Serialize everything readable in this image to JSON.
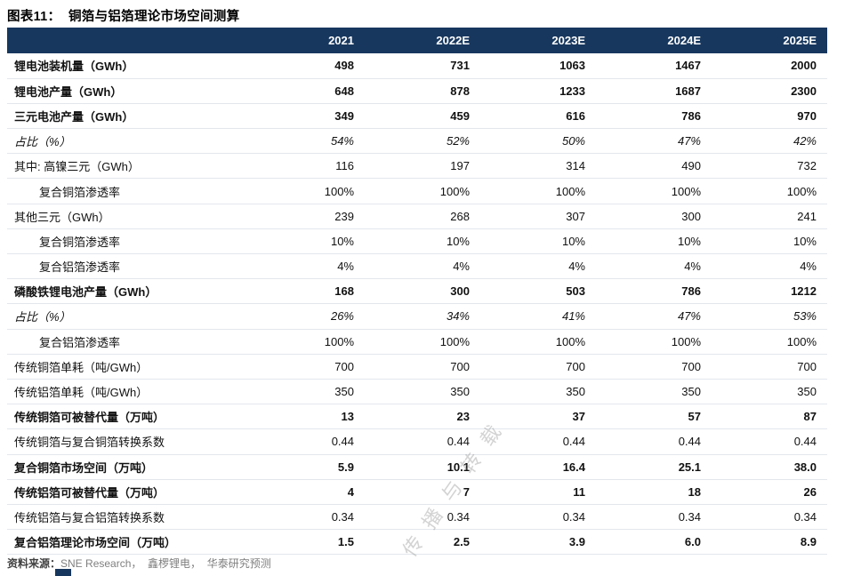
{
  "title": "图表11：  铜箔与铝箔理论市场空间测算",
  "colors": {
    "header_bg": "#17375E",
    "header_text": "#FFFFFF",
    "grid": "#E3E7ED",
    "navy": "#17375E",
    "muted": "#7F7F7F"
  },
  "chart_data": {
    "type": "table",
    "title": "图表11：铜箔与铝箔理论市场空间测算",
    "columns": [
      "2021",
      "2022E",
      "2023E",
      "2024E",
      "2025E"
    ],
    "rows": [
      {
        "label": "锂电池装机量（GWh）",
        "style": "bold",
        "indent": 0,
        "values": [
          "498",
          "731",
          "1063",
          "1467",
          "2000"
        ]
      },
      {
        "label": "锂电池产量（GWh）",
        "style": "bold",
        "indent": 0,
        "values": [
          "648",
          "878",
          "1233",
          "1687",
          "2300"
        ]
      },
      {
        "label": "三元电池产量（GWh）",
        "style": "bold",
        "indent": 0,
        "values": [
          "349",
          "459",
          "616",
          "786",
          "970"
        ]
      },
      {
        "label": "占比（%）",
        "style": "italic",
        "indent": 0,
        "values": [
          "54%",
          "52%",
          "50%",
          "47%",
          "42%"
        ]
      },
      {
        "label": "其中: 高镍三元（GWh）",
        "style": "normal",
        "indent": 0,
        "values": [
          "116",
          "197",
          "314",
          "490",
          "732"
        ]
      },
      {
        "label": "复合铜箔渗透率",
        "style": "normal",
        "indent": 1,
        "values": [
          "100%",
          "100%",
          "100%",
          "100%",
          "100%"
        ]
      },
      {
        "label": "其他三元（GWh）",
        "style": "normal",
        "indent": 0,
        "values": [
          "239",
          "268",
          "307",
          "300",
          "241"
        ]
      },
      {
        "label": "复合铜箔渗透率",
        "style": "normal",
        "indent": 1,
        "values": [
          "10%",
          "10%",
          "10%",
          "10%",
          "10%"
        ]
      },
      {
        "label": "复合铝箔渗透率",
        "style": "normal",
        "indent": 1,
        "values": [
          "4%",
          "4%",
          "4%",
          "4%",
          "4%"
        ]
      },
      {
        "label": "磷酸铁锂电池产量（GWh）",
        "style": "bold",
        "indent": 0,
        "values": [
          "168",
          "300",
          "503",
          "786",
          "1212"
        ]
      },
      {
        "label": "占比（%）",
        "style": "italic",
        "indent": 0,
        "values": [
          "26%",
          "34%",
          "41%",
          "47%",
          "53%"
        ]
      },
      {
        "label": "复合铝箔渗透率",
        "style": "normal",
        "indent": 1,
        "values": [
          "100%",
          "100%",
          "100%",
          "100%",
          "100%"
        ]
      },
      {
        "label": "传统铜箔单耗（吨/GWh）",
        "style": "normal",
        "indent": 0,
        "values": [
          "700",
          "700",
          "700",
          "700",
          "700"
        ]
      },
      {
        "label": "传统铝箔单耗（吨/GWh）",
        "style": "normal",
        "indent": 0,
        "values": [
          "350",
          "350",
          "350",
          "350",
          "350"
        ]
      },
      {
        "label": "传统铜箔可被替代量（万吨）",
        "style": "bold",
        "indent": 0,
        "values": [
          "13",
          "23",
          "37",
          "57",
          "87"
        ]
      },
      {
        "label": "传统铜箔与复合铜箔转换系数",
        "style": "normal",
        "indent": 0,
        "values": [
          "0.44",
          "0.44",
          "0.44",
          "0.44",
          "0.44"
        ]
      },
      {
        "label": "复合铜箔市场空间（万吨）",
        "style": "bold",
        "indent": 0,
        "values": [
          "5.9",
          "10.1",
          "16.4",
          "25.1",
          "38.0"
        ]
      },
      {
        "label": "传统铝箔可被替代量（万吨）",
        "style": "bold",
        "indent": 0,
        "values": [
          "4",
          "7",
          "11",
          "18",
          "26"
        ]
      },
      {
        "label": "传统铝箔与复合铝箔转换系数",
        "style": "normal",
        "indent": 0,
        "values": [
          "0.34",
          "0.34",
          "0.34",
          "0.34",
          "0.34"
        ]
      },
      {
        "label": "复合铝箔理论市场空间（万吨）",
        "style": "bold",
        "indent": 0,
        "values": [
          "1.5",
          "2.5",
          "3.9",
          "6.0",
          "8.9"
        ]
      }
    ]
  },
  "footer": {
    "source_label": "资料来源：",
    "source_text": "SNE Research，  鑫椤锂电，  华泰研究预测"
  },
  "watermark": "传播与转载"
}
